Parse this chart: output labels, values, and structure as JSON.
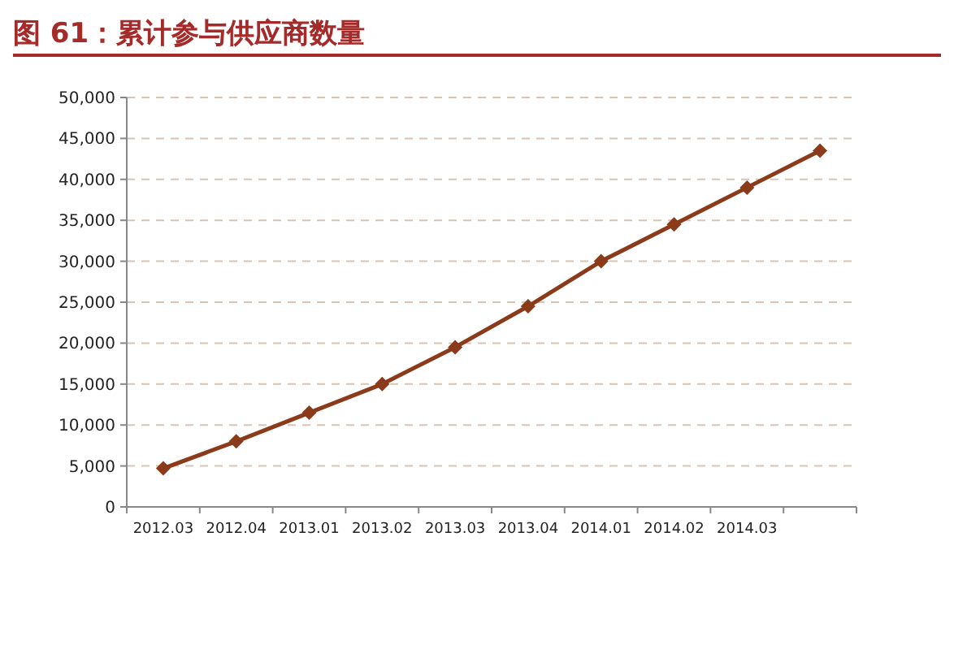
{
  "chart_data": {
    "type": "line",
    "title": "图 61：累计参与供应商数量",
    "categories": [
      "2012.03",
      "2012.04",
      "2013.01",
      "2013.02",
      "2013.03",
      "2013.04",
      "2014.01",
      "2014.02",
      "2014.03",
      null
    ],
    "series": [
      {
        "color": "#8b3a1a",
        "values": [
          4700,
          8000,
          11500,
          15000,
          19500,
          24500,
          30000,
          34500,
          39000,
          43500
        ]
      }
    ],
    "ylim": [
      0,
      50000
    ],
    "yticks": [
      {
        "value": 0,
        "label": "0"
      },
      {
        "value": 5000,
        "label": "5,000"
      },
      {
        "value": 10000,
        "label": "10,000"
      },
      {
        "value": 15000,
        "label": "15,000"
      },
      {
        "value": 20000,
        "label": "20,000"
      },
      {
        "value": 25000,
        "label": "25,000"
      },
      {
        "value": 30000,
        "label": "30,000"
      },
      {
        "value": 35000,
        "label": "35,000"
      },
      {
        "value": 40000,
        "label": "40,000"
      },
      {
        "value": 45000,
        "label": "45,000"
      },
      {
        "value": 50000,
        "label": "50,000"
      }
    ],
    "grid": "y",
    "marker": "diamond",
    "line_style": "solid"
  }
}
